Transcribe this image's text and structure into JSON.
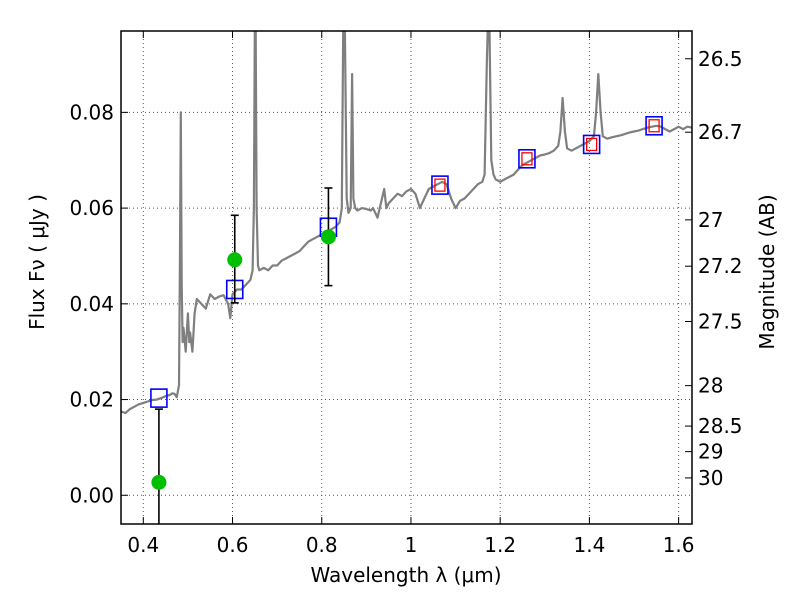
{
  "chart_data": {
    "type": "scatter",
    "xlabel": "Wavelength  λ (μm)",
    "ylabel": "Flux  Fν  ( μJy )",
    "y2label": "Magnitude (AB)",
    "xlim": [
      0.35,
      1.63
    ],
    "ylim": [
      -0.006,
      0.097
    ],
    "grid": true,
    "x_ticks": [
      {
        "value": 0.4,
        "label": "0.4"
      },
      {
        "value": 0.6,
        "label": "0.6"
      },
      {
        "value": 0.8,
        "label": "0.8"
      },
      {
        "value": 1.0,
        "label": "1"
      },
      {
        "value": 1.2,
        "label": "1.2"
      },
      {
        "value": 1.4,
        "label": "1.4"
      },
      {
        "value": 1.6,
        "label": "1.6"
      }
    ],
    "y_ticks": [
      {
        "value": 0.0,
        "label": "0.00"
      },
      {
        "value": 0.02,
        "label": "0.02"
      },
      {
        "value": 0.04,
        "label": "0.04"
      },
      {
        "value": 0.06,
        "label": "0.06"
      },
      {
        "value": 0.08,
        "label": "0.08"
      }
    ],
    "y2_ticks": [
      {
        "value": 26.5,
        "label": "26.5"
      },
      {
        "value": 26.7,
        "label": "26.7"
      },
      {
        "value": 27.0,
        "label": "27"
      },
      {
        "value": 27.2,
        "label": "27.2"
      },
      {
        "value": 27.5,
        "label": "27.5"
      },
      {
        "value": 28.0,
        "label": "28"
      },
      {
        "value": 28.5,
        "label": "28.5"
      },
      {
        "value": 29.0,
        "label": "29"
      },
      {
        "value": 30.0,
        "label": "30"
      }
    ],
    "series": [
      {
        "kind": "line",
        "color": "#7f7f7f",
        "points": [
          [
            0.35,
            0.0175
          ],
          [
            0.36,
            0.0172
          ],
          [
            0.37,
            0.018
          ],
          [
            0.38,
            0.0185
          ],
          [
            0.39,
            0.019
          ],
          [
            0.4,
            0.0193
          ],
          [
            0.41,
            0.0196
          ],
          [
            0.42,
            0.0199
          ],
          [
            0.43,
            0.02
          ],
          [
            0.44,
            0.0203
          ],
          [
            0.45,
            0.0207
          ],
          [
            0.46,
            0.021
          ],
          [
            0.465,
            0.0213
          ],
          [
            0.47,
            0.0212
          ],
          [
            0.475,
            0.0205
          ],
          [
            0.48,
            0.023
          ],
          [
            0.482,
            0.048
          ],
          [
            0.484,
            0.08
          ],
          [
            0.486,
            0.044
          ],
          [
            0.488,
            0.032
          ],
          [
            0.49,
            0.035
          ],
          [
            0.495,
            0.03
          ],
          [
            0.5,
            0.038
          ],
          [
            0.503,
            0.032
          ],
          [
            0.505,
            0.034
          ],
          [
            0.51,
            0.03
          ],
          [
            0.515,
            0.038
          ],
          [
            0.52,
            0.041
          ],
          [
            0.53,
            0.04
          ],
          [
            0.54,
            0.039
          ],
          [
            0.55,
            0.042
          ],
          [
            0.56,
            0.041
          ],
          [
            0.57,
            0.0415
          ],
          [
            0.58,
            0.0418
          ],
          [
            0.59,
            0.04
          ],
          [
            0.595,
            0.037
          ],
          [
            0.6,
            0.042
          ],
          [
            0.61,
            0.043
          ],
          [
            0.62,
            0.043
          ],
          [
            0.63,
            0.044
          ],
          [
            0.64,
            0.045
          ],
          [
            0.645,
            0.047
          ],
          [
            0.648,
            0.06
          ],
          [
            0.65,
            0.097
          ],
          [
            0.652,
            0.097
          ],
          [
            0.654,
            0.06
          ],
          [
            0.657,
            0.048
          ],
          [
            0.66,
            0.047
          ],
          [
            0.67,
            0.0475
          ],
          [
            0.68,
            0.047
          ],
          [
            0.69,
            0.048
          ],
          [
            0.7,
            0.048
          ],
          [
            0.71,
            0.049
          ],
          [
            0.72,
            0.0495
          ],
          [
            0.73,
            0.05
          ],
          [
            0.74,
            0.0505
          ],
          [
            0.75,
            0.051
          ],
          [
            0.76,
            0.052
          ],
          [
            0.77,
            0.053
          ],
          [
            0.78,
            0.0535
          ],
          [
            0.79,
            0.054
          ],
          [
            0.8,
            0.0545
          ],
          [
            0.81,
            0.0548
          ],
          [
            0.82,
            0.0555
          ],
          [
            0.83,
            0.056
          ],
          [
            0.84,
            0.057
          ],
          [
            0.845,
            0.06
          ],
          [
            0.848,
            0.097
          ],
          [
            0.852,
            0.097
          ],
          [
            0.856,
            0.062
          ],
          [
            0.86,
            0.059
          ],
          [
            0.865,
            0.06
          ],
          [
            0.868,
            0.088
          ],
          [
            0.871,
            0.062
          ],
          [
            0.875,
            0.06
          ],
          [
            0.88,
            0.0595
          ],
          [
            0.89,
            0.06
          ],
          [
            0.9,
            0.0598
          ],
          [
            0.91,
            0.0595
          ],
          [
            0.915,
            0.06
          ],
          [
            0.92,
            0.059
          ],
          [
            0.925,
            0.058
          ],
          [
            0.93,
            0.06
          ],
          [
            0.935,
            0.062
          ],
          [
            0.94,
            0.064
          ],
          [
            0.945,
            0.06
          ],
          [
            0.95,
            0.061
          ],
          [
            0.96,
            0.062
          ],
          [
            0.97,
            0.063
          ],
          [
            0.98,
            0.0625
          ],
          [
            0.99,
            0.0635
          ],
          [
            1.0,
            0.064
          ],
          [
            1.01,
            0.063
          ],
          [
            1.02,
            0.06
          ],
          [
            1.03,
            0.062
          ],
          [
            1.04,
            0.064
          ],
          [
            1.05,
            0.0645
          ],
          [
            1.06,
            0.065
          ],
          [
            1.07,
            0.0655
          ],
          [
            1.08,
            0.065
          ],
          [
            1.09,
            0.062
          ],
          [
            1.1,
            0.06
          ],
          [
            1.11,
            0.0615
          ],
          [
            1.12,
            0.062
          ],
          [
            1.13,
            0.063
          ],
          [
            1.14,
            0.064
          ],
          [
            1.15,
            0.065
          ],
          [
            1.16,
            0.0655
          ],
          [
            1.165,
            0.067
          ],
          [
            1.17,
            0.09
          ],
          [
            1.172,
            0.097
          ],
          [
            1.176,
            0.097
          ],
          [
            1.18,
            0.07
          ],
          [
            1.185,
            0.067
          ],
          [
            1.19,
            0.066
          ],
          [
            1.2,
            0.0655
          ],
          [
            1.21,
            0.066
          ],
          [
            1.22,
            0.0665
          ],
          [
            1.23,
            0.067
          ],
          [
            1.24,
            0.068
          ],
          [
            1.25,
            0.069
          ],
          [
            1.26,
            0.0695
          ],
          [
            1.27,
            0.07
          ],
          [
            1.28,
            0.0705
          ],
          [
            1.29,
            0.071
          ],
          [
            1.3,
            0.0712
          ],
          [
            1.31,
            0.0715
          ],
          [
            1.32,
            0.072
          ],
          [
            1.33,
            0.073
          ],
          [
            1.335,
            0.076
          ],
          [
            1.34,
            0.083
          ],
          [
            1.345,
            0.076
          ],
          [
            1.35,
            0.0725
          ],
          [
            1.36,
            0.072
          ],
          [
            1.37,
            0.0725
          ],
          [
            1.38,
            0.073
          ],
          [
            1.39,
            0.0735
          ],
          [
            1.4,
            0.074
          ],
          [
            1.41,
            0.075
          ],
          [
            1.415,
            0.08
          ],
          [
            1.42,
            0.088
          ],
          [
            1.425,
            0.08
          ],
          [
            1.43,
            0.075
          ],
          [
            1.44,
            0.0745
          ],
          [
            1.45,
            0.0748
          ],
          [
            1.46,
            0.075
          ],
          [
            1.47,
            0.0752
          ],
          [
            1.48,
            0.0755
          ],
          [
            1.49,
            0.0758
          ],
          [
            1.5,
            0.076
          ],
          [
            1.51,
            0.0762
          ],
          [
            1.52,
            0.0765
          ],
          [
            1.53,
            0.0768
          ],
          [
            1.54,
            0.077
          ],
          [
            1.55,
            0.0772
          ],
          [
            1.56,
            0.077
          ],
          [
            1.57,
            0.0765
          ],
          [
            1.58,
            0.076
          ],
          [
            1.59,
            0.0765
          ],
          [
            1.6,
            0.077
          ],
          [
            1.61,
            0.0765
          ],
          [
            1.62,
            0.077
          ],
          [
            1.63,
            0.0768
          ]
        ]
      },
      {
        "kind": "blue-squares",
        "color": "#0000ff",
        "points": [
          [
            0.435,
            0.0203
          ],
          [
            0.605,
            0.043
          ],
          [
            0.815,
            0.056
          ],
          [
            1.065,
            0.0648
          ],
          [
            1.26,
            0.0703
          ],
          [
            1.405,
            0.0733
          ],
          [
            1.545,
            0.0772
          ]
        ]
      },
      {
        "kind": "red-squares",
        "color": "#ff0000",
        "points": [
          [
            1.065,
            0.0648
          ],
          [
            1.26,
            0.0703
          ],
          [
            1.405,
            0.0733
          ],
          [
            1.545,
            0.0772
          ]
        ]
      },
      {
        "kind": "green-points",
        "color": "#00bf00",
        "points": [
          [
            0.435,
            0.0027,
            -0.009,
            0.018
          ],
          [
            0.605,
            0.0492,
            0.0402,
            0.0585
          ],
          [
            0.815,
            0.054,
            0.0438,
            0.0642
          ]
        ]
      }
    ]
  }
}
